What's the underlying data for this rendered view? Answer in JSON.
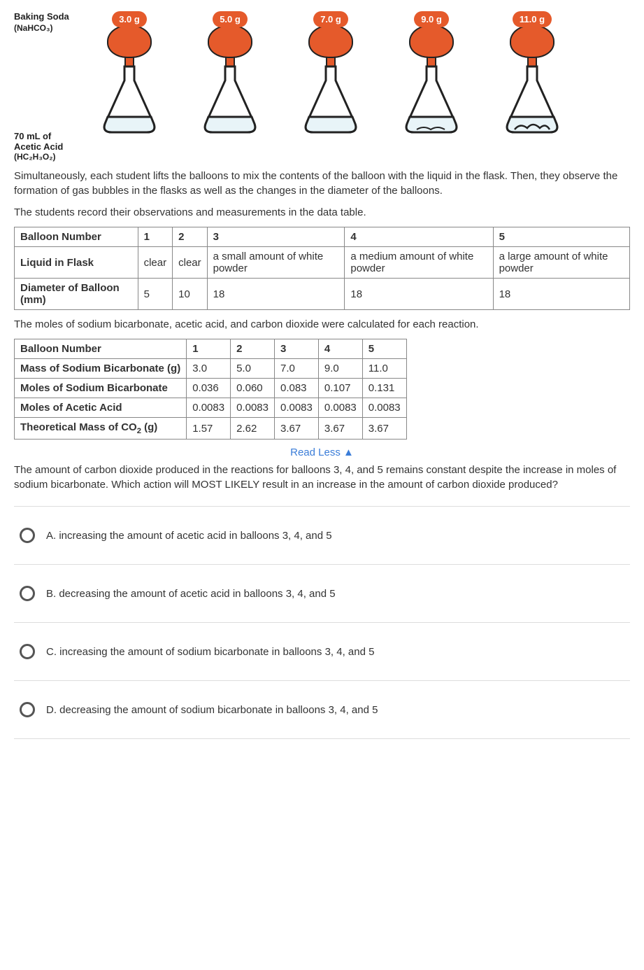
{
  "diagram": {
    "baking_soda_label": "Baking Soda",
    "baking_soda_formula": "(NaHCO₃)",
    "masses": [
      "3.0 g",
      "5.0 g",
      "7.0 g",
      "9.0 g",
      "11.0 g"
    ],
    "acid_volume": "70 mL of",
    "acid_name": "Acetic Acid",
    "acid_formula": "(HC₂H₃O₂)",
    "balloon_color": "#e55a2b",
    "flask_outline": "#222222",
    "liquid_color": "#e8f4f8"
  },
  "paragraph1": "Simultaneously, each student lifts the balloons to mix the contents of the balloon with the liquid in the flask. Then, they observe the formation of gas bubbles in the flasks as well as the changes in the diameter of the balloons.",
  "paragraph2": "The students record their observations and measurements in the data table.",
  "table1": {
    "rows": [
      [
        "Balloon Number",
        "1",
        "2",
        "3",
        "4",
        "5"
      ],
      [
        "Liquid in Flask",
        "clear",
        "clear",
        "a small amount of white powder",
        "a medium amount of white powder",
        "a large amount of white powder"
      ],
      [
        "Diameter of Balloon (mm)",
        "5",
        "10",
        "18",
        "18",
        "18"
      ]
    ]
  },
  "paragraph3": "The moles of sodium bicarbonate, acetic acid, and carbon dioxide were calculated for each reaction.",
  "table2": {
    "rows": [
      [
        "Balloon Number",
        "1",
        "2",
        "3",
        "4",
        "5"
      ],
      [
        "Mass of Sodium Bicarbonate (g)",
        "3.0",
        "5.0",
        "7.0",
        "9.0",
        "11.0"
      ],
      [
        "Moles of Sodium Bicarbonate",
        "0.036",
        "0.060",
        "0.083",
        "0.107",
        "0.131"
      ],
      [
        "Moles of Acetic Acid",
        "0.0083",
        "0.0083",
        "0.0083",
        "0.0083",
        "0.0083"
      ],
      [
        "Theoretical Mass of CO₂ (g)",
        "1.57",
        "2.62",
        "3.67",
        "3.67",
        "3.67"
      ]
    ]
  },
  "read_less": "Read Less ▲",
  "question": "The amount of carbon dioxide produced in the reactions for balloons 3, 4, and 5 remains constant despite the increase in moles of sodium bicarbonate. Which action will MOST LIKELY result in an increase in the amount of carbon dioxide produced?",
  "options": {
    "a": "A. increasing the amount of acetic acid in balloons 3, 4, and 5",
    "b": "B. decreasing the amount of acetic acid in balloons 3, 4, and 5",
    "c": "C. increasing the amount of sodium bicarbonate in balloons 3, 4, and 5",
    "d": "D. decreasing the amount of sodium bicarbonate in balloons 3, 4, and 5"
  }
}
